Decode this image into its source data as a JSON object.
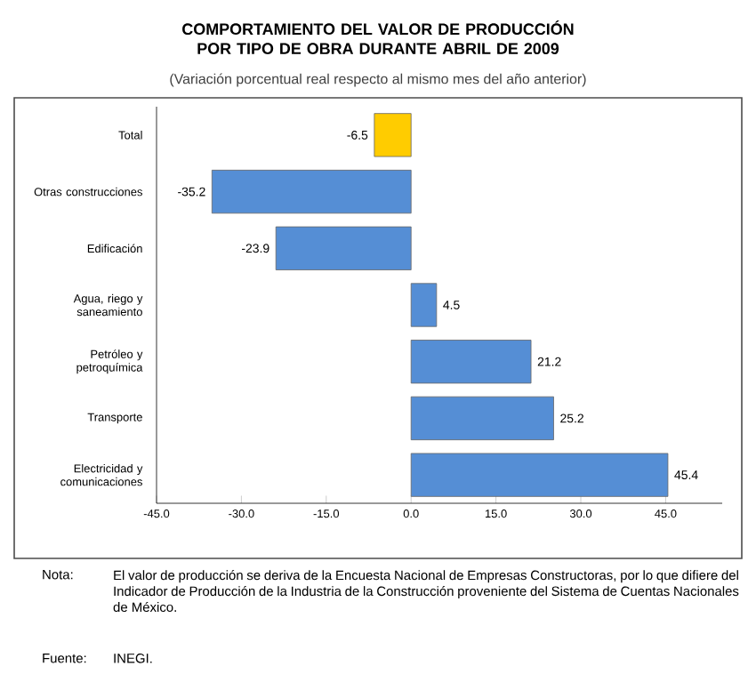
{
  "chart_data": {
    "type": "bar",
    "orientation": "horizontal",
    "title": "COMPORTAMIENTO DEL VALOR DE PRODUCCIÓN POR TIPO DE OBRA DURANTE ABRIL DE 2009",
    "subtitle": "(Variación porcentual real respecto al mismo mes del año anterior)",
    "categories": [
      "Total",
      "Otras construcciones",
      "Edificación",
      "Agua, riego y saneamiento",
      "Petróleo y petroquímica",
      "Transporte",
      "Electricidad y comunicaciones"
    ],
    "values": [
      -6.5,
      -35.2,
      -23.9,
      4.5,
      21.2,
      25.2,
      45.4
    ],
    "colors": [
      "#ffcc00",
      "#558ed5",
      "#558ed5",
      "#558ed5",
      "#558ed5",
      "#558ed5",
      "#558ed5"
    ],
    "data_labels": true,
    "xlim": [
      -45,
      55
    ],
    "xticks": [
      {
        "value": -45,
        "label": "-45.0"
      },
      {
        "value": -30,
        "label": "-30.0"
      },
      {
        "value": -15,
        "label": "-15.0"
      },
      {
        "value": 0,
        "label": "0.0"
      },
      {
        "value": 15,
        "label": "15.0"
      },
      {
        "value": 30,
        "label": "30.0"
      },
      {
        "value": 45,
        "label": "45.0"
      }
    ],
    "annotations": [
      "Nota:",
      "El valor de producción se deriva de la Encuesta Nacional de Empresas Constructoras, por lo que difiere del Indicador de Producción de la Industria de la Construcción proveniente del Sistema de Cuentas Nacionales de México.",
      "Fuente:",
      "INEGI."
    ]
  }
}
